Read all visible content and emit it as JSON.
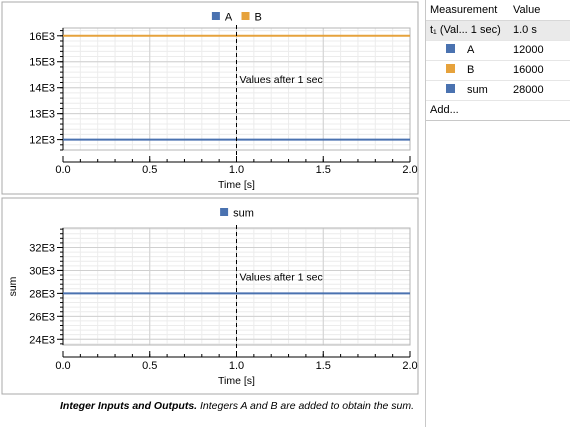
{
  "chart_data": [
    {
      "type": "line",
      "legend_position": "top",
      "series": [
        {
          "name": "A",
          "x": [
            0.0,
            2.0
          ],
          "values": [
            12000,
            12000
          ],
          "color": "#4a72b0"
        },
        {
          "name": "B",
          "x": [
            0.0,
            2.0
          ],
          "values": [
            16000,
            16000
          ],
          "color": "#e6a23c"
        }
      ],
      "xlabel": "Time [s]",
      "ylabel": "",
      "xlim": [
        0,
        2
      ],
      "ylim": [
        11600,
        16300
      ],
      "x_ticks": [
        0.0,
        0.5,
        1.0,
        1.5,
        2.0
      ],
      "x_tick_labels": [
        "0.0",
        "0.5",
        "1.0",
        "1.5",
        "2.0"
      ],
      "y_ticks": [
        12000,
        13000,
        14000,
        15000,
        16000
      ],
      "y_tick_labels": [
        "12E3",
        "13E3",
        "14E3",
        "15E3",
        "16E3"
      ],
      "grid": true,
      "annotation": {
        "x": 1.0,
        "label": "Values after 1 sec"
      }
    },
    {
      "type": "line",
      "legend_position": "top",
      "series": [
        {
          "name": "sum",
          "x": [
            0.0,
            2.0
          ],
          "values": [
            28000,
            28000
          ],
          "color": "#4a72b0"
        }
      ],
      "xlabel": "Time [s]",
      "ylabel": "sum",
      "xlim": [
        0,
        2
      ],
      "ylim": [
        23500,
        33700
      ],
      "x_ticks": [
        0.0,
        0.5,
        1.0,
        1.5,
        2.0
      ],
      "x_tick_labels": [
        "0.0",
        "0.5",
        "1.0",
        "1.5",
        "2.0"
      ],
      "y_ticks": [
        24000,
        26000,
        28000,
        30000,
        32000
      ],
      "y_tick_labels": [
        "24E3",
        "26E3",
        "28E3",
        "30E3",
        "32E3"
      ],
      "grid": true,
      "annotation": {
        "x": 1.0,
        "label": "Values after 1 sec"
      }
    }
  ],
  "caption": {
    "bold": "Integer Inputs and Outputs.",
    "text": " Integers A and B are added to obtain the sum."
  },
  "measurements": {
    "headers": {
      "name": "Measurement",
      "value": "Value"
    },
    "group": {
      "label": "t₁ (Val... 1 sec)",
      "value": "1.0 s"
    },
    "rows": [
      {
        "name": "A",
        "value": "12000",
        "color": "#4a72b0"
      },
      {
        "name": "B",
        "value": "16000",
        "color": "#e6a23c"
      },
      {
        "name": "sum",
        "value": "28000",
        "color": "#4a72b0"
      }
    ],
    "add_label": "Add..."
  }
}
